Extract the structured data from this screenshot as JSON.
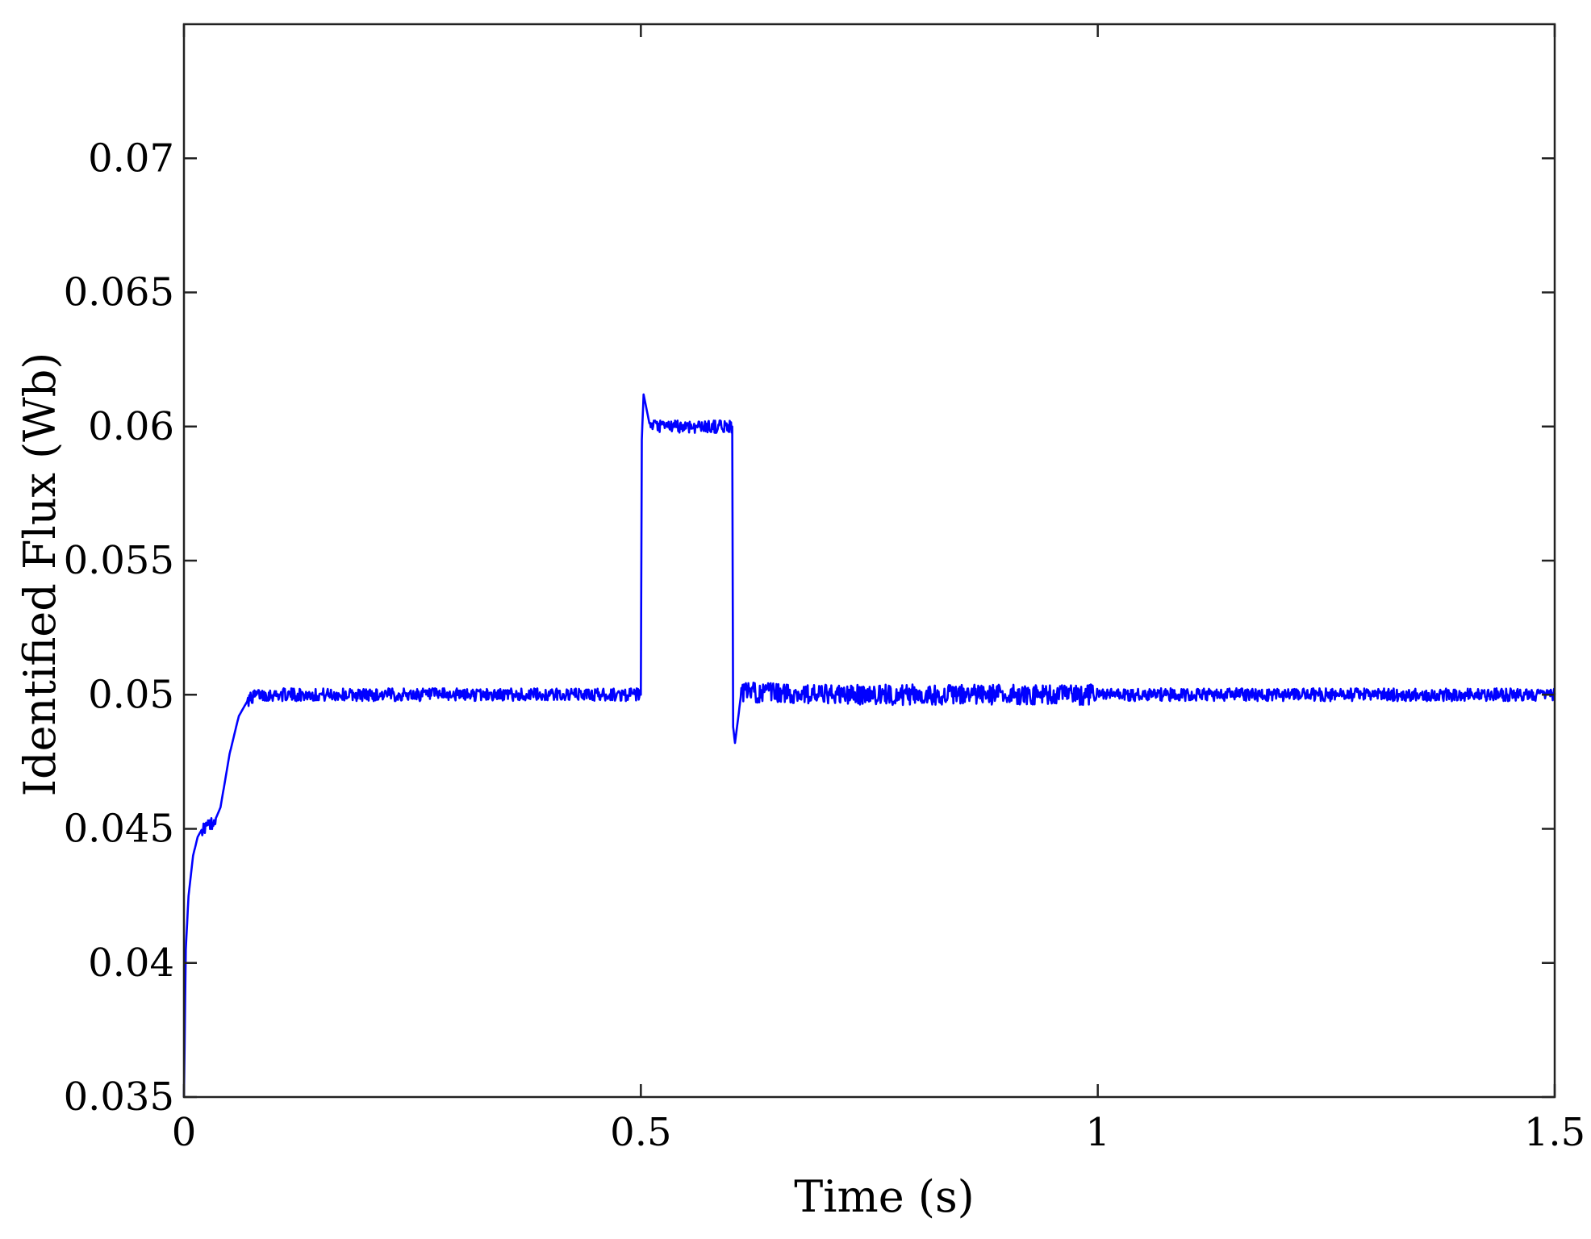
{
  "chart_data": {
    "type": "line",
    "title": "",
    "xlabel": "Time (s)",
    "ylabel": "Identified Flux (Wb)",
    "xlim": [
      0,
      1.5
    ],
    "ylim": [
      0.035,
      0.075
    ],
    "xticks": [
      0,
      0.5,
      1,
      1.5
    ],
    "xtick_labels": [
      "0",
      "0.5",
      "1",
      "1.5"
    ],
    "yticks": [
      0.035,
      0.04,
      0.045,
      0.05,
      0.055,
      0.06,
      0.065,
      0.07
    ],
    "ytick_labels": [
      "0.035",
      "0.04",
      "0.045",
      "0.05",
      "0.055",
      "0.06",
      "0.065",
      "0.07"
    ],
    "grid": false,
    "legend": "none",
    "line_color": "#0000ff",
    "series": [
      {
        "x": [
          0,
          0.002,
          0.005,
          0.01,
          0.015,
          0.02,
          0.03,
          0.035,
          0.04,
          0.045,
          0.05,
          0.06,
          0.07,
          0.08,
          0.09,
          0.1,
          0.2,
          0.3,
          0.4,
          0.499,
          0.5,
          0.501,
          0.503,
          0.51,
          0.55,
          0.598,
          0.6,
          0.601,
          0.603,
          0.61,
          0.7,
          0.8,
          0.9,
          1.0,
          1.1,
          1.2,
          1.3,
          1.4,
          1.5
        ],
        "y": [
          0.035,
          0.0405,
          0.0425,
          0.044,
          0.0447,
          0.045,
          0.0452,
          0.0454,
          0.0458,
          0.0468,
          0.0478,
          0.0492,
          0.0498,
          0.05,
          0.05,
          0.05,
          0.05,
          0.05,
          0.05,
          0.05,
          0.05,
          0.0595,
          0.0612,
          0.06,
          0.06,
          0.06,
          0.06,
          0.0488,
          0.0482,
          0.0501,
          0.05,
          0.05,
          0.05,
          0.05,
          0.05,
          0.05,
          0.05,
          0.05,
          0.05
        ]
      }
    ]
  }
}
